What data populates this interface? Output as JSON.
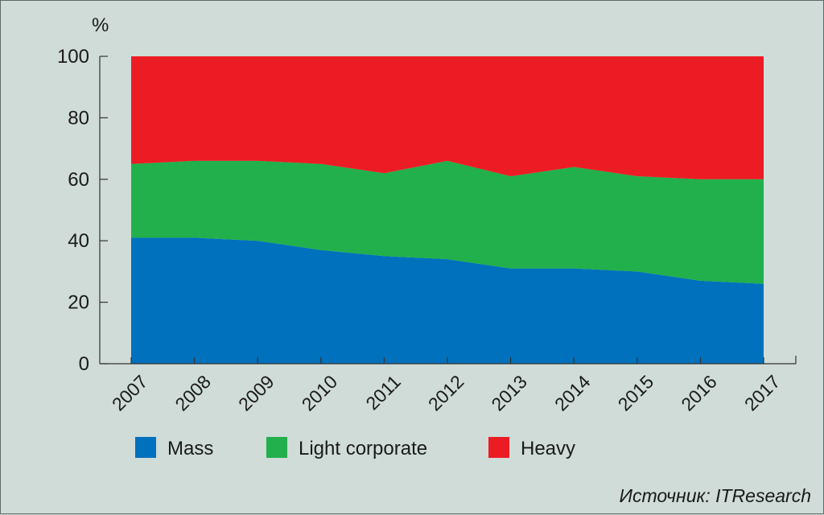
{
  "chart_data": {
    "type": "area",
    "stacked": true,
    "ylabel": "%",
    "ylim": [
      0,
      100
    ],
    "yticks": [
      0,
      20,
      40,
      60,
      80,
      100
    ],
    "categories": [
      "2007",
      "2008",
      "2009",
      "2010",
      "2011",
      "2012",
      "2013",
      "2014",
      "2015",
      "2016",
      "2017"
    ],
    "series": [
      {
        "name": "Mass",
        "color": "#0071bc",
        "values": [
          41,
          41,
          40,
          37,
          35,
          34,
          31,
          31,
          30,
          27,
          26
        ]
      },
      {
        "name": "Light corporate",
        "color": "#21b04b",
        "values": [
          24,
          25,
          26,
          28,
          27,
          32,
          30,
          33,
          31,
          33,
          34
        ]
      },
      {
        "name": "Heavy",
        "color": "#ec1c24",
        "values": [
          35,
          34,
          34,
          35,
          38,
          34,
          39,
          36,
          39,
          40,
          40
        ]
      }
    ],
    "legend": "bottom",
    "grid": false,
    "source": "Источник: ITResearch"
  }
}
